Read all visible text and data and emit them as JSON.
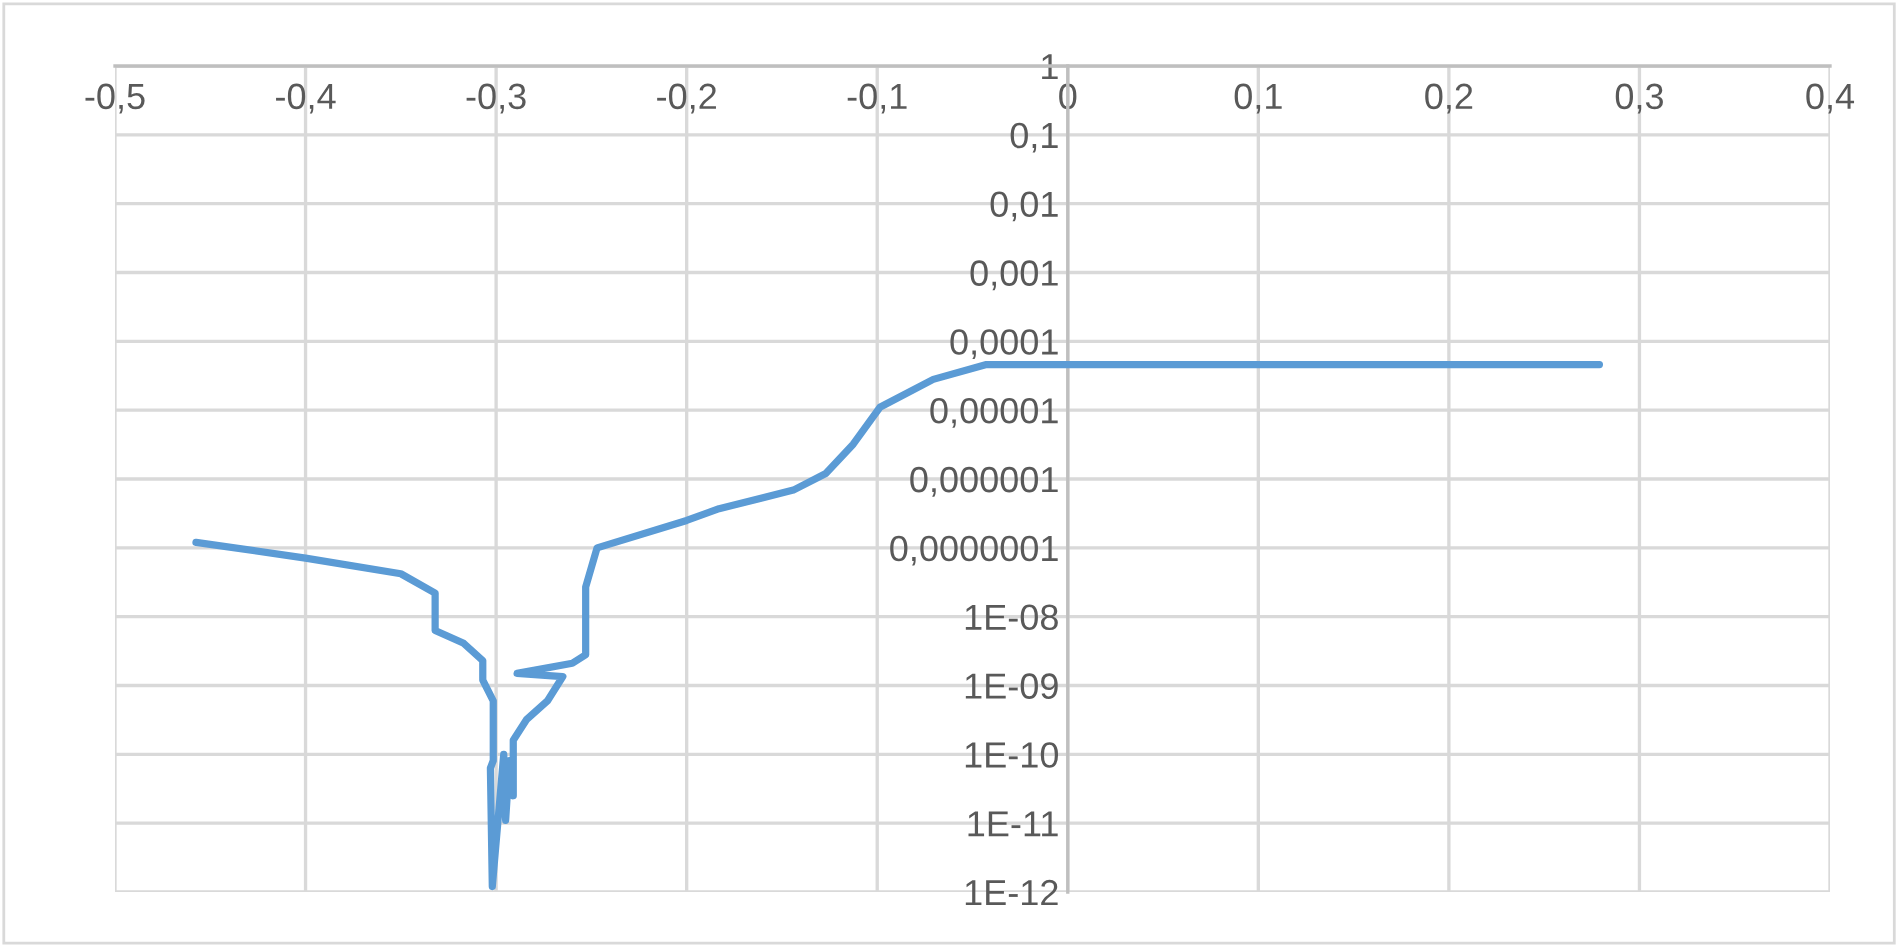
{
  "chart_data": {
    "type": "line",
    "log": "y",
    "grid": true,
    "legend": false,
    "marker": "none",
    "line_style": "solid",
    "series": [
      {
        "color": "#5b9bd5",
        "x": [
          -0.4575,
          -0.4,
          -0.35,
          -0.332,
          -0.332,
          -0.317,
          -0.307,
          -0.307,
          -0.3015,
          -0.3015,
          -0.303,
          -0.302,
          -0.296,
          -0.295,
          -0.293,
          -0.291,
          -0.291,
          -0.284,
          -0.273,
          -0.265,
          -0.289,
          -0.26,
          -0.253,
          -0.253,
          -0.247,
          -0.2,
          -0.183,
          -0.144,
          -0.127,
          -0.1126,
          -0.0986,
          -0.0706,
          -0.0427,
          0.0,
          0.1,
          0.2,
          0.279
        ],
        "values": [
          1.2e-07,
          7.1e-08,
          4.2e-08,
          2.2e-08,
          6.3e-09,
          4.1e-09,
          2.3e-09,
          1.2e-09,
          6e-10,
          8.1e-11,
          6.3e-11,
          1.2e-12,
          1e-10,
          1.1e-11,
          8.1e-11,
          2.5e-11,
          1.6e-10,
          3.2e-10,
          6e-10,
          1.35e-09,
          1.5e-09,
          2.1e-09,
          2.8e-09,
          2.7e-08,
          1e-07,
          2.5e-07,
          3.7e-07,
          6.9e-07,
          1.2e-06,
          3.2e-06,
          1.1e-05,
          2.8e-05,
          4.6e-05,
          4.6e-05,
          4.6e-05,
          4.6e-05,
          4.6e-05
        ]
      }
    ],
    "xlim": [
      -0.5,
      0.4
    ],
    "xticks": [
      {
        "value": -0.5,
        "label": "-0,5"
      },
      {
        "value": -0.4,
        "label": "-0,4"
      },
      {
        "value": -0.3,
        "label": "-0,3"
      },
      {
        "value": -0.2,
        "label": "-0,2"
      },
      {
        "value": -0.1,
        "label": "-0,1"
      },
      0,
      {
        "value": 0.1,
        "label": "0,1"
      },
      {
        "value": 0.2,
        "label": "0,2"
      },
      {
        "value": 0.3,
        "label": "0,3"
      },
      {
        "value": 0.4,
        "label": "0,4"
      }
    ],
    "ylim": [
      1e-12,
      1
    ],
    "yticks": [
      1,
      {
        "value": 0.1,
        "label": "0,1"
      },
      {
        "value": 0.01,
        "label": "0,01"
      },
      {
        "value": 0.001,
        "label": "0,001"
      },
      {
        "value": 0.0001,
        "label": "0,0001"
      },
      {
        "value": 1e-05,
        "label": "0,00001"
      },
      {
        "value": 1e-06,
        "label": "0,000001"
      },
      {
        "value": 1e-07,
        "label": "0,0000001"
      },
      {
        "value": 1e-08,
        "label": "1E-08"
      },
      {
        "value": 1e-09,
        "label": "1E-09"
      },
      {
        "value": 1e-10,
        "label": "1E-10"
      },
      {
        "value": 1e-11,
        "label": "1E-11"
      },
      {
        "value": 1e-12,
        "label": "1E-12"
      }
    ]
  }
}
